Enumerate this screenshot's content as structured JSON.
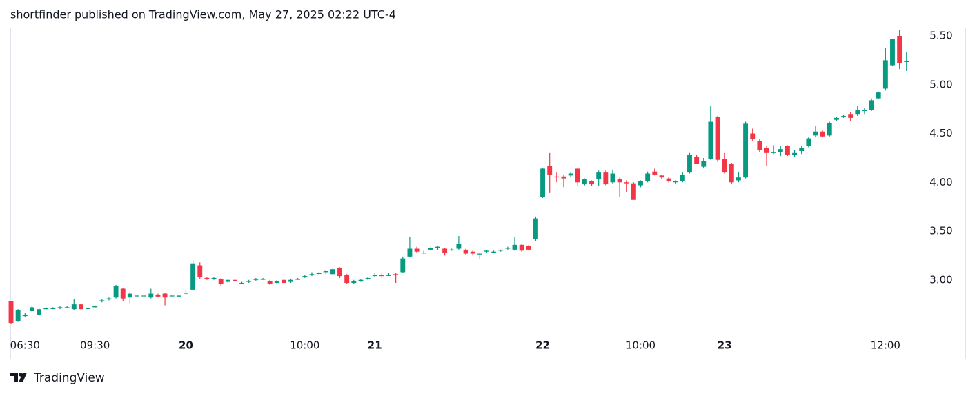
{
  "chart_data": {
    "type": "candlestick",
    "title": "shortfinder published on TradingView.com, May 27, 2025 02:22 UTC-4",
    "brand": "TradingView",
    "up_color": "#089981",
    "down_color": "#f23645",
    "open": [
      2.78,
      2.58,
      2.63,
      2.68,
      2.64,
      2.7,
      2.71,
      2.71,
      2.72,
      2.7,
      2.75,
      2.71,
      2.72,
      2.78,
      2.8,
      2.82,
      2.91,
      2.82,
      2.84,
      2.84,
      2.82,
      2.85,
      2.86,
      2.84,
      2.83,
      2.86,
      2.9,
      3.15,
      3.02,
      3.02,
      3.01,
      2.98,
      3.0,
      2.97,
      2.98,
      3.0,
      3.01,
      2.99,
      2.97,
      3.0,
      2.98,
      3.01,
      3.03,
      3.05,
      3.07,
      3.08,
      3.06,
      3.12,
      3.05,
      2.97,
      2.99,
      3.01,
      3.04,
      3.05,
      3.05,
      3.06,
      3.08,
      3.24,
      3.32,
      3.28,
      3.31,
      3.33,
      3.32,
      3.31,
      3.32,
      3.31,
      3.29,
      3.27,
      3.29,
      3.29,
      3.3,
      3.32,
      3.31,
      3.36,
      3.35,
      3.42,
      3.85,
      4.17,
      4.06,
      4.06,
      4.07,
      4.14,
      3.98,
      4.01,
      4.03,
      4.1,
      4.0,
      4.03,
      4.0,
      3.99,
      3.97,
      4.01,
      4.11,
      4.07,
      4.04,
      4.0,
      4.01,
      4.1,
      4.26,
      4.16,
      4.24,
      4.67,
      4.24,
      4.19,
      4.02,
      4.05,
      4.5,
      4.42,
      4.35,
      4.3,
      4.31,
      4.37,
      4.28,
      4.32,
      4.37,
      4.48,
      4.52,
      4.48,
      4.64,
      4.67,
      4.7,
      4.7,
      4.73,
      4.74,
      4.86,
      4.96,
      5.2,
      5.5,
      5.24
    ],
    "high": [
      2.78,
      2.7,
      2.66,
      2.74,
      2.71,
      2.72,
      2.72,
      2.73,
      2.73,
      2.8,
      2.76,
      2.72,
      2.74,
      2.8,
      2.82,
      2.95,
      2.92,
      2.88,
      2.85,
      2.85,
      2.91,
      2.86,
      2.87,
      2.85,
      2.85,
      2.9,
      3.2,
      3.18,
      3.03,
      3.03,
      3.02,
      3.01,
      3.01,
      2.98,
      3.0,
      3.02,
      3.02,
      3.0,
      3.0,
      3.01,
      3.01,
      3.02,
      3.05,
      3.08,
      3.08,
      3.1,
      3.12,
      3.13,
      3.06,
      3.0,
      3.01,
      3.03,
      3.07,
      3.07,
      3.07,
      3.07,
      3.24,
      3.44,
      3.34,
      3.3,
      3.34,
      3.35,
      3.33,
      3.32,
      3.45,
      3.32,
      3.3,
      3.28,
      3.31,
      3.3,
      3.31,
      3.34,
      3.44,
      3.37,
      3.36,
      3.65,
      4.15,
      4.3,
      4.1,
      4.08,
      4.1,
      4.15,
      4.04,
      4.02,
      4.12,
      4.12,
      4.13,
      4.05,
      4.02,
      4.0,
      4.02,
      4.11,
      4.14,
      4.08,
      4.05,
      4.02,
      4.1,
      4.3,
      4.28,
      4.25,
      4.78,
      4.68,
      4.3,
      4.2,
      4.1,
      4.62,
      4.55,
      4.44,
      4.37,
      4.38,
      4.37,
      4.38,
      4.33,
      4.37,
      4.46,
      4.58,
      4.53,
      4.62,
      4.67,
      4.69,
      4.72,
      4.78,
      4.76,
      4.86,
      4.93,
      5.38,
      5.47,
      5.56,
      5.33
    ],
    "low": [
      2.55,
      2.57,
      2.62,
      2.67,
      2.63,
      2.69,
      2.7,
      2.7,
      2.71,
      2.69,
      2.69,
      2.7,
      2.71,
      2.77,
      2.79,
      2.81,
      2.78,
      2.76,
      2.83,
      2.83,
      2.81,
      2.82,
      2.74,
      2.83,
      2.82,
      2.85,
      2.89,
      3.01,
      3.0,
      3.0,
      2.94,
      2.97,
      2.98,
      2.96,
      2.97,
      2.99,
      3.0,
      2.95,
      2.96,
      2.96,
      2.97,
      3.0,
      3.02,
      3.04,
      3.06,
      3.06,
      3.05,
      3.02,
      2.96,
      2.96,
      2.98,
      3.0,
      3.03,
      3.02,
      3.04,
      2.97,
      3.07,
      3.23,
      3.28,
      3.27,
      3.3,
      3.31,
      3.25,
      3.3,
      3.31,
      3.26,
      3.25,
      3.21,
      3.28,
      3.28,
      3.29,
      3.31,
      3.3,
      3.29,
      3.3,
      3.4,
      3.84,
      3.89,
      4.0,
      3.95,
      4.05,
      3.96,
      3.97,
      3.96,
      3.96,
      3.97,
      3.98,
      3.85,
      3.9,
      3.82,
      3.95,
      4.0,
      4.07,
      4.03,
      4.0,
      3.98,
      4.0,
      4.09,
      4.19,
      4.15,
      4.23,
      4.21,
      4.09,
      3.98,
      4.0,
      4.04,
      4.42,
      4.31,
      4.17,
      4.29,
      4.27,
      4.27,
      4.26,
      4.29,
      4.36,
      4.46,
      4.46,
      4.47,
      4.63,
      4.66,
      4.63,
      4.68,
      4.7,
      4.73,
      4.85,
      4.94,
      5.19,
      5.16,
      5.14
    ],
    "close": [
      2.56,
      2.69,
      2.64,
      2.72,
      2.7,
      2.71,
      2.71,
      2.72,
      2.72,
      2.75,
      2.7,
      2.71,
      2.73,
      2.79,
      2.81,
      2.94,
      2.81,
      2.86,
      2.84,
      2.84,
      2.86,
      2.83,
      2.82,
      2.84,
      2.84,
      2.87,
      3.17,
      3.03,
      3.01,
      3.02,
      2.96,
      3.0,
      2.99,
      2.97,
      2.99,
      3.01,
      3.01,
      2.96,
      2.99,
      2.97,
      3.0,
      3.01,
      3.04,
      3.06,
      3.07,
      3.09,
      3.11,
      3.04,
      2.97,
      2.99,
      3.0,
      3.02,
      3.05,
      3.04,
      3.05,
      3.05,
      3.22,
      3.32,
      3.29,
      3.28,
      3.33,
      3.34,
      3.28,
      3.31,
      3.37,
      3.27,
      3.27,
      3.27,
      3.3,
      3.29,
      3.31,
      3.33,
      3.36,
      3.3,
      3.31,
      3.63,
      4.14,
      4.08,
      4.05,
      4.04,
      4.09,
      4.0,
      4.03,
      3.98,
      4.1,
      3.98,
      4.09,
      4.0,
      3.99,
      3.82,
      4.01,
      4.09,
      4.08,
      4.05,
      4.01,
      4.01,
      4.08,
      4.28,
      4.19,
      4.22,
      4.62,
      4.23,
      4.1,
      4.0,
      4.05,
      4.6,
      4.44,
      4.33,
      4.3,
      4.31,
      4.34,
      4.28,
      4.3,
      4.35,
      4.45,
      4.52,
      4.47,
      4.61,
      4.66,
      4.68,
      4.66,
      4.74,
      4.74,
      4.84,
      4.92,
      5.25,
      5.47,
      5.22,
      5.24
    ],
    "xlim": [
      -0.1,
      129.6
    ],
    "xticks": [
      {
        "value": 2,
        "label": "06:30"
      },
      {
        "value": 12,
        "label": "09:30"
      },
      {
        "value": 25,
        "label": "20"
      },
      {
        "value": 42,
        "label": "10:00"
      },
      {
        "value": 52,
        "label": "21"
      },
      {
        "value": 76,
        "label": "22"
      },
      {
        "value": 90,
        "label": "10:00"
      },
      {
        "value": 102,
        "label": "23"
      },
      {
        "value": 125,
        "label": "12:00"
      }
    ],
    "ylim": [
      2.44,
      5.585
    ],
    "yticks": [
      {
        "value": 3,
        "label": "3.00"
      },
      {
        "value": 3.5,
        "label": "3.50"
      },
      {
        "value": 4,
        "label": "4.00"
      },
      {
        "value": 4.5,
        "label": "4.50"
      },
      {
        "value": 5,
        "label": "5.00"
      },
      {
        "value": 5.5,
        "label": "5.50"
      }
    ]
  }
}
